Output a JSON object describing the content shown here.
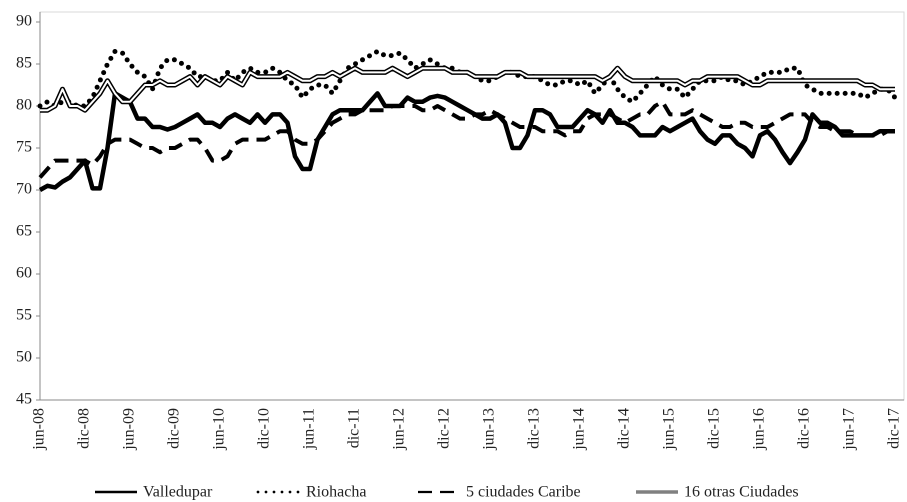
{
  "chart_data": {
    "type": "line",
    "categories": [
      "jun-08",
      null,
      null,
      null,
      null,
      null,
      "dic-08",
      null,
      null,
      null,
      null,
      null,
      "jun-09",
      null,
      null,
      null,
      null,
      null,
      "dic-09",
      null,
      null,
      null,
      null,
      null,
      "jun-10",
      null,
      null,
      null,
      null,
      null,
      "dic-10",
      null,
      null,
      null,
      null,
      null,
      "jun-11",
      null,
      null,
      null,
      null,
      null,
      "dic-11",
      null,
      null,
      null,
      null,
      null,
      "jun-12",
      null,
      null,
      null,
      null,
      null,
      "dic-12",
      null,
      null,
      null,
      null,
      null,
      "jun-13",
      null,
      null,
      null,
      null,
      null,
      "dic-13",
      null,
      null,
      null,
      null,
      null,
      "jun-14",
      null,
      null,
      null,
      null,
      null,
      "dic-14",
      null,
      null,
      null,
      null,
      null,
      "jun-15",
      null,
      null,
      null,
      null,
      null,
      "dic-15",
      null,
      null,
      null,
      null,
      null,
      "jun-16",
      null,
      null,
      null,
      null,
      null,
      "dic-16",
      null,
      null,
      null,
      null,
      null,
      "jun-17",
      null,
      null,
      null,
      null,
      null,
      "dic-17"
    ],
    "series": [
      {
        "name": "Valledupar",
        "color": "#000000",
        "style": "solid",
        "values": [
          70,
          70.5,
          70.3,
          71,
          71.5,
          72.5,
          73.5,
          70.2,
          70.2,
          75,
          81.5,
          81,
          80.5,
          78.5,
          78.5,
          77.5,
          77.5,
          77.2,
          77.5,
          78,
          78.5,
          79,
          78,
          78,
          77.5,
          78.5,
          79,
          78.5,
          78,
          79,
          78,
          79,
          79,
          78,
          74,
          72.5,
          72.5,
          76,
          77.5,
          79,
          79.5,
          79.5,
          79.5,
          79.5,
          80.5,
          81.5,
          80,
          80,
          80,
          81,
          80.5,
          80.5,
          81,
          81.2,
          81,
          80.5,
          80,
          79.5,
          79,
          78.5,
          78.5,
          79,
          78,
          75,
          75,
          76.5,
          79.5,
          79.5,
          79,
          77.5,
          77.5,
          77.5,
          78.5,
          79.5,
          79,
          78,
          79.5,
          78,
          78,
          77.5,
          76.5,
          76.5,
          76.5,
          77.5,
          77,
          77.5,
          78,
          78.5,
          77,
          76,
          75.5,
          76.5,
          76.5,
          75.5,
          75,
          74,
          76.5,
          77,
          76,
          74.5,
          73.2,
          74.5,
          76,
          79,
          78,
          78,
          77.5,
          76.5,
          76.5,
          76.5,
          76.5,
          76.5,
          77,
          77,
          77
        ]
      },
      {
        "name": "Riohacha",
        "color": "#000000",
        "style": "dotted",
        "values": [
          80,
          80.5,
          80,
          80.5,
          80.5,
          80,
          80,
          81,
          83,
          85,
          86.5,
          86.3,
          85,
          84,
          83.5,
          82,
          84.5,
          85.5,
          85.5,
          85,
          84.5,
          83.5,
          83.5,
          83,
          83,
          84,
          83,
          84,
          84.5,
          84,
          84,
          84.5,
          84,
          83,
          82.5,
          81,
          82,
          82.5,
          82.5,
          81.5,
          83,
          84.5,
          85,
          85.5,
          86,
          86.5,
          86,
          86,
          86.3,
          85.5,
          84.5,
          85,
          85.5,
          85,
          84.5,
          84.5,
          84,
          84,
          83.5,
          83,
          83,
          83.5,
          84,
          84,
          83.5,
          83.5,
          83.5,
          83,
          82.5,
          82.5,
          83,
          83,
          82.5,
          83,
          81.5,
          82.5,
          83.5,
          82,
          81,
          80.5,
          81.5,
          82.5,
          83.5,
          82.5,
          82,
          82,
          81,
          82,
          83,
          83,
          83,
          83.5,
          83,
          83,
          82.5,
          83,
          83.5,
          84,
          84,
          84,
          84.5,
          84.5,
          82.5,
          82,
          81.5,
          81.5,
          81.5,
          81.5,
          81.5,
          81.5,
          81,
          81.5,
          82,
          82,
          81
        ]
      },
      {
        "name": "5 ciudades Caribe",
        "color": "#000000",
        "style": "dashed",
        "values": [
          71.5,
          72.5,
          73.5,
          73.5,
          73.5,
          73.5,
          73.5,
          73,
          74,
          75.5,
          76,
          76,
          76,
          75.5,
          75,
          75,
          74.5,
          75,
          75,
          75.5,
          76,
          76,
          75,
          73.5,
          73.5,
          74,
          75.5,
          76,
          76,
          76,
          76,
          76.5,
          77,
          77,
          76,
          75.5,
          75.5,
          76,
          77,
          78,
          78.5,
          79,
          79,
          79.5,
          79.5,
          79.5,
          79.5,
          80,
          80,
          80,
          80,
          79.5,
          79.5,
          80,
          79.5,
          79,
          78.5,
          78.5,
          79,
          79,
          79.5,
          79,
          78.5,
          78,
          77.5,
          77.5,
          77.5,
          77,
          77,
          77,
          76.5,
          77,
          77,
          78.5,
          79,
          79,
          79,
          78.5,
          78,
          78.5,
          79,
          79,
          80,
          80.5,
          79,
          79,
          79,
          79.5,
          79,
          78.5,
          78,
          77.5,
          77.5,
          78,
          78,
          77.5,
          77.5,
          77.5,
          78,
          78.5,
          79,
          79,
          79,
          78,
          77.5,
          77.5,
          77,
          77,
          77,
          76.5,
          76.5,
          76.5,
          76.5,
          77,
          77
        ]
      },
      {
        "name": "16 otras Ciudades",
        "color": "#000000",
        "style": "double",
        "values": [
          79.5,
          79.5,
          80,
          82,
          80,
          80,
          79.5,
          80.5,
          81.5,
          83,
          81.5,
          80.5,
          80.5,
          81.5,
          82.5,
          82.5,
          83,
          82.5,
          82.5,
          83,
          83.5,
          82.5,
          83.5,
          83,
          82.5,
          83.5,
          83,
          82.5,
          84,
          83.5,
          83.5,
          83.5,
          83.5,
          84,
          83.5,
          83,
          83,
          83.5,
          83.5,
          84,
          83.5,
          84,
          84.5,
          84,
          84,
          84,
          84,
          84.5,
          84,
          83.5,
          84,
          84.5,
          84.5,
          84.5,
          84.5,
          84,
          84,
          84,
          83.5,
          83.5,
          83.5,
          83.5,
          84,
          84,
          84,
          83.5,
          83.5,
          83.5,
          83.5,
          83.5,
          83.5,
          83.5,
          83.5,
          83.5,
          83.5,
          83,
          83.5,
          84.5,
          83.5,
          83,
          83,
          83,
          83,
          83,
          83,
          83,
          82.5,
          83,
          83,
          83.5,
          83.5,
          83.5,
          83.5,
          83.5,
          83,
          82.5,
          82.5,
          83,
          83,
          83,
          83,
          83,
          83,
          83,
          83,
          83,
          83,
          83,
          83,
          83,
          82.5,
          82.5,
          82,
          82,
          82
        ]
      }
    ],
    "ylim": [
      45,
      90
    ],
    "yticks": [
      45,
      50,
      55,
      60,
      65,
      70,
      75,
      80,
      85,
      90
    ],
    "grid": false,
    "legend": "bottom"
  }
}
